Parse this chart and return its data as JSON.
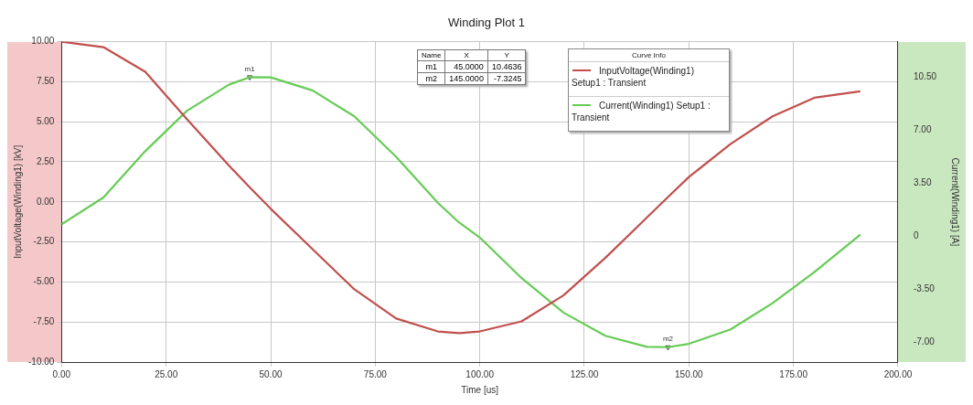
{
  "chart_data": {
    "type": "line",
    "title": "Winding Plot 1",
    "xlabel": "Time [us]",
    "ylabel": "InputVoltage(Winding1) [kV]",
    "y2label": "Current(Winding1) [A]",
    "legend_title": "Curve Info",
    "x": [
      0,
      10,
      20,
      30,
      40,
      45,
      50,
      60,
      70,
      80,
      90,
      95,
      100,
      110,
      120,
      130,
      140,
      145,
      150,
      160,
      170,
      180,
      191
    ],
    "series": [
      {
        "name": "InputVoltage(Winding1) Setup1 : Transient",
        "color": "#c0504d",
        "values": [
          10.0,
          9.66,
          8.12,
          5.15,
          2.27,
          0.9,
          -0.43,
          -2.95,
          -5.46,
          -7.28,
          -8.09,
          -8.2,
          -8.09,
          -7.46,
          -5.84,
          -3.5,
          -0.97,
          0.3,
          1.55,
          3.62,
          5.34,
          6.5,
          6.9
        ]
      },
      {
        "name": "Current(Winding1) Setup1 : Transient",
        "color": "#66cc55",
        "axis": "y2",
        "values": [
          0.77,
          2.54,
          5.59,
          8.25,
          9.97,
          10.46,
          10.45,
          9.59,
          7.88,
          5.22,
          2.18,
          0.9,
          -0.1,
          -2.77,
          -5.04,
          -6.57,
          -7.3,
          -7.32,
          -7.1,
          -6.15,
          -4.42,
          -2.38,
          0.09
        ]
      },
      {
        "type": "scatter",
        "color": "#333333",
        "axis": "y2",
        "marker": "triangle",
        "x": [
          45,
          145
        ],
        "values": [
          10.4636,
          -7.3245
        ],
        "value_labels": [
          "m1",
          "m2"
        ]
      }
    ],
    "xlim": [
      0,
      200
    ],
    "xticks": [
      {
        "value": 0,
        "label": "0.00"
      },
      {
        "value": 25,
        "label": "25.00"
      },
      {
        "value": 50,
        "label": "50.00"
      },
      {
        "value": 75,
        "label": "75.00"
      },
      {
        "value": 100,
        "label": "100.00"
      },
      {
        "value": 125,
        "label": "125.00"
      },
      {
        "value": 150,
        "label": "150.00"
      },
      {
        "value": 175,
        "label": "175.00"
      },
      {
        "value": 200,
        "label": "200.00"
      }
    ],
    "ylim": [
      -10,
      10
    ],
    "yticks": [
      {
        "value": -10,
        "label": "-10.00"
      },
      {
        "value": -7.5,
        "label": "-7.50"
      },
      {
        "value": -5,
        "label": "-5.00"
      },
      {
        "value": -2.5,
        "label": "-2.50"
      },
      {
        "value": 0,
        "label": "0.00"
      },
      {
        "value": 2.5,
        "label": "2.50"
      },
      {
        "value": 5,
        "label": "5.00"
      },
      {
        "value": 7.5,
        "label": "7.50"
      },
      {
        "value": 10,
        "label": "10.00"
      }
    ],
    "y2lim": [
      -8.3,
      12.8
    ],
    "y2ticks": [
      {
        "value": -7,
        "label": "-7.00"
      },
      {
        "value": -3.5,
        "label": "-3.50"
      },
      0,
      {
        "value": 3.5,
        "label": "3.50"
      },
      {
        "value": 7,
        "label": "7.00"
      },
      {
        "value": 10.5,
        "label": "10.50"
      }
    ],
    "annotations": [
      "Name",
      "X",
      "Y",
      "m1",
      "45.0000",
      "10.4636",
      "m2",
      "145.0000",
      "-7.3245"
    ],
    "grid": true,
    "legend": "top right",
    "marker": "none",
    "line_style": "solid"
  }
}
